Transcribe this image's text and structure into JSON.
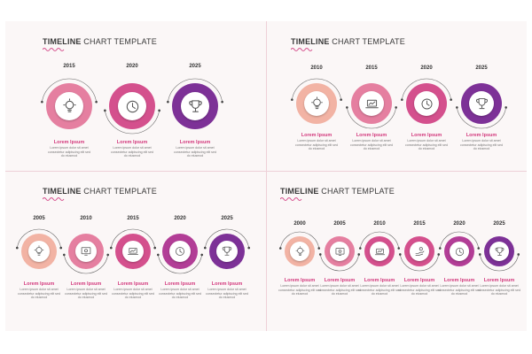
{
  "title_bold": "TIMELINE",
  "title_light": " CHART TEMPLATE",
  "item_label": "Lorem Ipsum",
  "item_text": "Lorem ipsum dolor sit amet consectetur adipiscing elit sed do eiusmod",
  "colors": {
    "c1": "#f2b3a4",
    "c2": "#e57fa0",
    "c3": "#d4508d",
    "c4": "#b23d96",
    "c5": "#7d3197",
    "label": "#d2387c"
  },
  "panels": [
    {
      "id": "top-left",
      "years": [
        "2015",
        "2020",
        "2025"
      ],
      "icons": [
        "bulb-icon",
        "clock-icon",
        "trophy-icon"
      ]
    },
    {
      "id": "top-right",
      "years": [
        "2010",
        "2015",
        "2020",
        "2025"
      ],
      "icons": [
        "bulb-icon",
        "laptop-icon",
        "clock-icon",
        "trophy-icon"
      ]
    },
    {
      "id": "bottom-left",
      "years": [
        "2005",
        "2010",
        "2015",
        "2020",
        "2025"
      ],
      "icons": [
        "bulb-icon",
        "screen-icon",
        "laptop-icon",
        "clock-icon",
        "trophy-icon"
      ]
    },
    {
      "id": "bottom-right",
      "years": [
        "2000",
        "2005",
        "2010",
        "2015",
        "2020",
        "2025"
      ],
      "icons": [
        "bulb-icon",
        "screen-icon",
        "laptop-icon",
        "hand-icon",
        "clock-icon",
        "trophy-icon"
      ]
    }
  ]
}
